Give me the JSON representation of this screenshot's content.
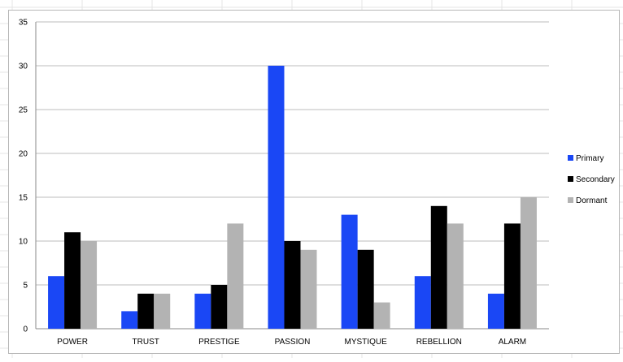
{
  "chart_data": {
    "type": "bar",
    "title": "",
    "xlabel": "",
    "ylabel": "",
    "categories": [
      "POWER",
      "TRUST",
      "PRESTIGE",
      "PASSION",
      "MYSTIQUE",
      "REBELLION",
      "ALARM"
    ],
    "series": [
      {
        "name": "Primary",
        "color": "#1a47f5",
        "values": [
          6,
          2,
          4,
          30,
          13,
          6,
          4
        ]
      },
      {
        "name": "Secondary",
        "color": "#000000",
        "values": [
          11,
          4,
          5,
          10,
          9,
          14,
          12
        ]
      },
      {
        "name": "Dormant",
        "color": "#b3b3b3",
        "values": [
          10,
          4,
          12,
          9,
          3,
          12,
          15
        ]
      }
    ],
    "ylim": [
      0,
      35
    ],
    "yticks": [
      "0",
      "5",
      "10",
      "15",
      "20",
      "25",
      "30",
      "35"
    ],
    "grid": true,
    "legend_position": "right"
  }
}
